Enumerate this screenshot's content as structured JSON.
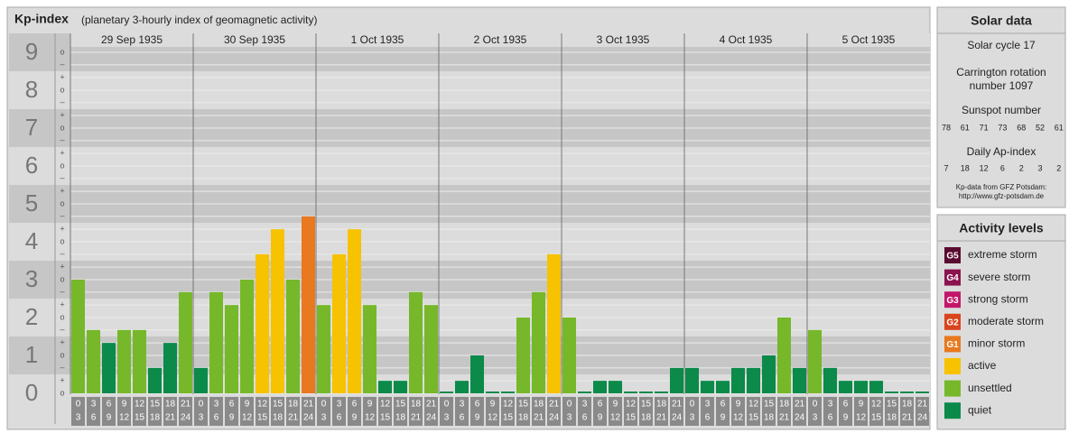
{
  "chart_data": {
    "type": "bar",
    "title": "Kp-index",
    "subtitle": "(planetary 3-hourly index of geomagnetic activity)",
    "ylim": [
      0,
      9.5
    ],
    "yticks": [
      0,
      1,
      2,
      3,
      4,
      5,
      6,
      7,
      8,
      9
    ],
    "minor_ticks": [
      {
        "value": 0,
        "label": "o"
      },
      {
        "value": 0.33,
        "label": "+"
      },
      {
        "value": 0.67,
        "label": "–"
      },
      {
        "value": 1,
        "label": "o"
      },
      {
        "value": 1.33,
        "label": "+"
      },
      {
        "value": 1.67,
        "label": "–"
      },
      {
        "value": 2,
        "label": "o"
      },
      {
        "value": 2.33,
        "label": "+"
      },
      {
        "value": 2.67,
        "label": "–"
      },
      {
        "value": 3,
        "label": "o"
      },
      {
        "value": 3.33,
        "label": "+"
      },
      {
        "value": 3.67,
        "label": "–"
      },
      {
        "value": 4,
        "label": "o"
      },
      {
        "value": 4.33,
        "label": "+"
      },
      {
        "value": 4.67,
        "label": "–"
      },
      {
        "value": 5,
        "label": "o"
      },
      {
        "value": 5.33,
        "label": "+"
      },
      {
        "value": 5.67,
        "label": "–"
      },
      {
        "value": 6,
        "label": "o"
      },
      {
        "value": 6.33,
        "label": "+"
      },
      {
        "value": 6.67,
        "label": "–"
      },
      {
        "value": 7,
        "label": "o"
      },
      {
        "value": 7.33,
        "label": "+"
      },
      {
        "value": 7.67,
        "label": "–"
      },
      {
        "value": 8,
        "label": "o"
      },
      {
        "value": 8.33,
        "label": "+"
      },
      {
        "value": 8.67,
        "label": "–"
      },
      {
        "value": 9,
        "label": "o"
      }
    ],
    "hours": [
      [
        "0",
        "3"
      ],
      [
        "3",
        "6"
      ],
      [
        "6",
        "9"
      ],
      [
        "9",
        "12"
      ],
      [
        "12",
        "15"
      ],
      [
        "15",
        "18"
      ],
      [
        "18",
        "21"
      ],
      [
        "21",
        "24"
      ]
    ],
    "days": [
      {
        "date": "29 Sep 1935",
        "values": [
          3,
          1.67,
          1.33,
          1.67,
          1.67,
          0.67,
          1.33,
          2.67
        ],
        "colors": [
          "#76b82a",
          "#76b82a",
          "#0b8a4a",
          "#76b82a",
          "#76b82a",
          "#0b8a4a",
          "#0b8a4a",
          "#76b82a"
        ]
      },
      {
        "date": "30 Sep 1935",
        "values": [
          0.67,
          2.67,
          2.33,
          3,
          3.67,
          4.33,
          3,
          4.67
        ],
        "colors": [
          "#0b8a4a",
          "#76b82a",
          "#76b82a",
          "#76b82a",
          "#f7c200",
          "#f7c200",
          "#76b82a",
          "#e8791e"
        ]
      },
      {
        "date": "1 Oct 1935",
        "values": [
          2.33,
          3.67,
          4.33,
          2.33,
          0.33,
          0.33,
          2.67,
          2.33
        ],
        "colors": [
          "#76b82a",
          "#f7c200",
          "#f7c200",
          "#76b82a",
          "#0b8a4a",
          "#0b8a4a",
          "#76b82a",
          "#76b82a"
        ]
      },
      {
        "date": "2 Oct 1935",
        "values": [
          0,
          0.33,
          1,
          0,
          0,
          2,
          2.67,
          3.67
        ],
        "colors": [
          "#0b8a4a",
          "#0b8a4a",
          "#0b8a4a",
          "#0b8a4a",
          "#0b8a4a",
          "#76b82a",
          "#76b82a",
          "#f7c200"
        ]
      },
      {
        "date": "3 Oct 1935",
        "values": [
          2,
          0,
          0.33,
          0.33,
          0,
          0,
          0,
          0.67
        ],
        "colors": [
          "#76b82a",
          "#0b8a4a",
          "#0b8a4a",
          "#0b8a4a",
          "#0b8a4a",
          "#0b8a4a",
          "#0b8a4a",
          "#0b8a4a"
        ]
      },
      {
        "date": "4 Oct 1935",
        "values": [
          0.67,
          0.33,
          0.33,
          0.67,
          0.67,
          1,
          2,
          0.67
        ],
        "colors": [
          "#0b8a4a",
          "#0b8a4a",
          "#0b8a4a",
          "#0b8a4a",
          "#0b8a4a",
          "#0b8a4a",
          "#76b82a",
          "#0b8a4a"
        ]
      },
      {
        "date": "5 Oct 1935",
        "values": [
          1.67,
          0.67,
          0.33,
          0.33,
          0.33,
          0,
          0,
          0
        ],
        "colors": [
          "#76b82a",
          "#0b8a4a",
          "#0b8a4a",
          "#0b8a4a",
          "#0b8a4a",
          "#0b8a4a",
          "#0b8a4a",
          "#0b8a4a"
        ]
      }
    ],
    "solar_data": {
      "title": "Solar data",
      "cycle": "Solar cycle 17",
      "carrington": [
        "Carrington rotation",
        "number 1097"
      ],
      "sunspot_title": "Sunspot number",
      "sunspot": [
        78,
        61,
        71,
        73,
        68,
        52,
        61
      ],
      "ap_title": "Daily Ap-index",
      "ap": [
        7,
        18,
        12,
        6,
        2,
        3,
        2
      ],
      "source": [
        "Kp-data from GFZ Potsdam:",
        "http://www.gfz-potsdam.de"
      ]
    },
    "activity_levels": {
      "title": "Activity levels",
      "items": [
        {
          "badge": "G5",
          "label": "extreme storm",
          "color": "#5a0a2f"
        },
        {
          "badge": "G4",
          "label": "severe storm",
          "color": "#8a1350"
        },
        {
          "badge": "G3",
          "label": "strong storm",
          "color": "#c2166b"
        },
        {
          "badge": "G2",
          "label": "moderate storm",
          "color": "#d8451d"
        },
        {
          "badge": "G1",
          "label": "minor storm",
          "color": "#e8791e"
        },
        {
          "label": "active",
          "color": "#f7c200"
        },
        {
          "label": "unsettled",
          "color": "#76b82a"
        },
        {
          "label": "quiet",
          "color": "#0b8a4a"
        }
      ]
    }
  }
}
